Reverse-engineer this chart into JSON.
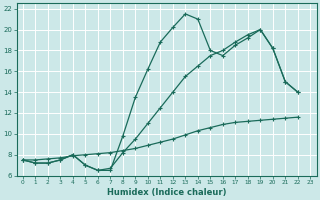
{
  "xlabel": "Humidex (Indice chaleur)",
  "bg_color": "#cce8e8",
  "grid_color": "#b0d4d4",
  "line_color": "#1a6b5a",
  "xlim": [
    -0.5,
    23.5
  ],
  "ylim": [
    6,
    22.5
  ],
  "xticks": [
    0,
    1,
    2,
    3,
    4,
    5,
    6,
    7,
    8,
    9,
    10,
    11,
    12,
    13,
    14,
    15,
    16,
    17,
    18,
    19,
    20,
    21,
    22,
    23
  ],
  "yticks": [
    6,
    8,
    10,
    12,
    14,
    16,
    18,
    20,
    22
  ],
  "line1_x": [
    0,
    1,
    2,
    3,
    4,
    5,
    6,
    7,
    8,
    9,
    10,
    11,
    12,
    13,
    14,
    15,
    16,
    17,
    18,
    19,
    20,
    21,
    22
  ],
  "line1_y": [
    7.5,
    7.2,
    7.2,
    7.5,
    8.0,
    7.0,
    6.5,
    6.5,
    9.8,
    13.5,
    16.2,
    18.8,
    20.2,
    21.5,
    21.0,
    18.0,
    17.5,
    18.5,
    19.2,
    20.0,
    18.2,
    15.0,
    14.0
  ],
  "line2_x": [
    0,
    1,
    2,
    3,
    4,
    5,
    6,
    7,
    8,
    9,
    10,
    11,
    12,
    13,
    14,
    15,
    16,
    17,
    18,
    19,
    20,
    21,
    22
  ],
  "line2_y": [
    7.5,
    7.2,
    7.2,
    7.5,
    8.0,
    7.0,
    6.5,
    6.7,
    8.2,
    9.5,
    11.0,
    12.5,
    14.0,
    15.5,
    16.5,
    17.5,
    18.0,
    18.8,
    19.5,
    20.0,
    18.2,
    15.0,
    14.0
  ],
  "line3_x": [
    0,
    1,
    2,
    3,
    4,
    5,
    6,
    7,
    8,
    9,
    10,
    11,
    12,
    13,
    14,
    15,
    16,
    17,
    18,
    19,
    20,
    21,
    22
  ],
  "line3_y": [
    7.5,
    7.5,
    7.6,
    7.7,
    7.9,
    8.0,
    8.1,
    8.2,
    8.4,
    8.6,
    8.9,
    9.2,
    9.5,
    9.9,
    10.3,
    10.6,
    10.9,
    11.1,
    11.2,
    11.3,
    11.4,
    11.5,
    11.6
  ]
}
